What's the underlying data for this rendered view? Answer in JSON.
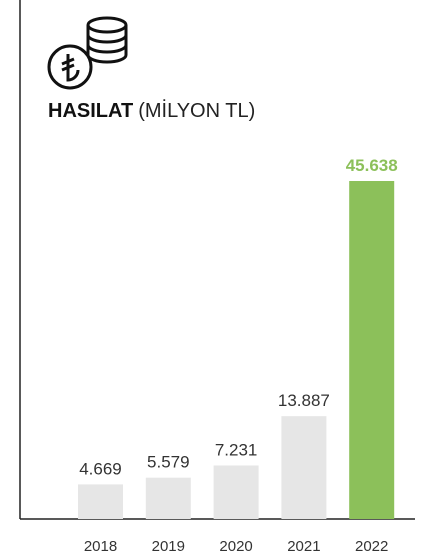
{
  "chart_data": {
    "type": "bar",
    "title": "HASILAT",
    "subtitle": "(MİLYON TL)",
    "categories": [
      "2018",
      "2019",
      "2020",
      "2021",
      "2022"
    ],
    "values": [
      4669,
      5579,
      7231,
      13887,
      45638
    ],
    "value_labels": [
      "4.669",
      "5.579",
      "7.231",
      "13.887",
      "45.638"
    ],
    "colors": [
      "#e6e6e6",
      "#e6e6e6",
      "#e6e6e6",
      "#e6e6e6",
      "#8cc05a"
    ],
    "label_colors": [
      "#333333",
      "#333333",
      "#333333",
      "#333333",
      "#8cc05a"
    ]
  }
}
